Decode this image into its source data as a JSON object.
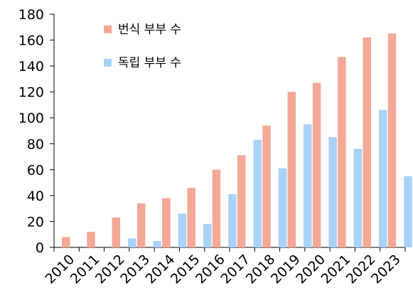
{
  "chart_data": {
    "type": "bar",
    "title": "",
    "xlabel": "",
    "ylabel": "",
    "categories": [
      "2010",
      "2011",
      "2012",
      "2013",
      "2014",
      "2015",
      "2016",
      "2017",
      "2018",
      "2019",
      "2020",
      "2021",
      "2022",
      "2023"
    ],
    "series": [
      {
        "name": "번식 부부 수",
        "color": "#f4a896",
        "values": [
          8,
          12,
          23,
          34,
          38,
          46,
          60,
          71,
          94,
          120,
          127,
          147,
          162,
          165
        ]
      },
      {
        "name": "독립 부부 수",
        "color": "#a9d2f8",
        "values": [
          0,
          0,
          7,
          5,
          26,
          18,
          41,
          83,
          61,
          95,
          85,
          76,
          106,
          55
        ]
      }
    ],
    "ylim": [
      0,
      180
    ],
    "yticks": [
      0,
      20,
      40,
      60,
      80,
      100,
      120,
      140,
      160,
      180
    ],
    "grid": false,
    "legend_position": "top-left"
  }
}
